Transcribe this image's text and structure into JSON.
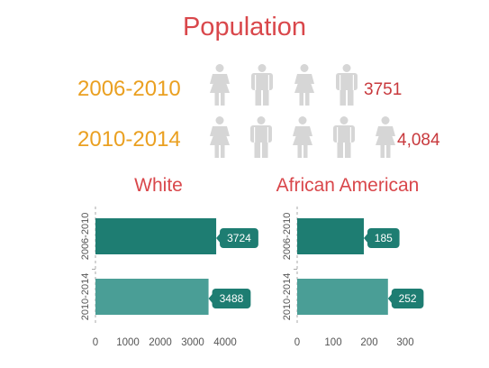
{
  "title": "Population",
  "periods": [
    {
      "label": "2006-2010",
      "count": "3751",
      "figures": [
        "female",
        "male",
        "female",
        "male"
      ]
    },
    {
      "label": "2010-2014",
      "count": "4,084",
      "figures": [
        "female",
        "male",
        "female",
        "male",
        "female"
      ]
    }
  ],
  "colors": {
    "title": "#d9474b",
    "period": "#eaa021",
    "count": "#c8393d",
    "figure": "#d6d6d6",
    "bar_dark": "#1e7d72",
    "bar_light": "#4a9e96",
    "axis": "#aaaaaa",
    "tick": "#555555"
  },
  "chart_data": [
    {
      "type": "bar",
      "orientation": "horizontal",
      "title": "White",
      "categories": [
        "2006-2010",
        "2010-2014"
      ],
      "values": [
        3724,
        3488
      ],
      "data_labels": [
        "3724",
        "3488"
      ],
      "xlim": [
        0,
        4000
      ],
      "xticks": [
        0,
        1000,
        2000,
        3000,
        4000
      ],
      "xtick_labels": [
        "0",
        "1000",
        "2000",
        "3000",
        "4000"
      ],
      "grid": false
    },
    {
      "type": "bar",
      "orientation": "horizontal",
      "title": "African American",
      "categories": [
        "2006-2010",
        "2010-2014"
      ],
      "values": [
        185,
        252
      ],
      "data_labels": [
        "185",
        "252"
      ],
      "xlim": [
        0,
        300
      ],
      "xticks": [
        0,
        100,
        200,
        300
      ],
      "xtick_labels": [
        "0",
        "100",
        "200",
        "300"
      ],
      "grid": false
    }
  ]
}
